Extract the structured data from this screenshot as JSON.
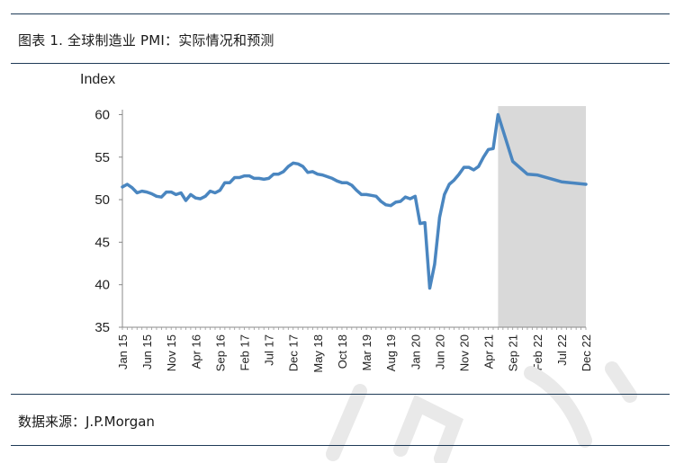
{
  "header": {
    "title": "图表 1. 全球制造业 PMI：实际情况和预测"
  },
  "footer": {
    "source": "数据来源：J.P.Morgan"
  },
  "chart_data": {
    "type": "line",
    "title": "",
    "xlabel": "",
    "ylabel": "Index",
    "ylim": [
      35,
      61
    ],
    "yticks": [
      35,
      40,
      45,
      50,
      55,
      60
    ],
    "xtick_labels": [
      "Jan 15",
      "Jun 15",
      "Nov 15",
      "Apr 16",
      "Sep 16",
      "Feb 17",
      "Jul 17",
      "Dec 17",
      "May 18",
      "Oct 18",
      "Mar 19",
      "Aug 19",
      "Jan 20",
      "Jun 20",
      "Nov 20",
      "Apr 21",
      "Sep 21",
      "Feb 22",
      "Jul 22",
      "Dec 22"
    ],
    "forecast_region": {
      "from": "Jun 21",
      "to": "Dec 22",
      "color": "#d9d9d9"
    },
    "grid": false,
    "series": [
      {
        "color": "#4a86c0",
        "x": [
          "Jan 15",
          "Feb 15",
          "Mar 15",
          "Apr 15",
          "May 15",
          "Jun 15",
          "Jul 15",
          "Aug 15",
          "Sep 15",
          "Oct 15",
          "Nov 15",
          "Dec 15",
          "Jan 16",
          "Feb 16",
          "Mar 16",
          "Apr 16",
          "May 16",
          "Jun 16",
          "Jul 16",
          "Aug 16",
          "Sep 16",
          "Oct 16",
          "Nov 16",
          "Dec 16",
          "Jan 17",
          "Feb 17",
          "Mar 17",
          "Apr 17",
          "May 17",
          "Jun 17",
          "Jul 17",
          "Aug 17",
          "Sep 17",
          "Oct 17",
          "Nov 17",
          "Dec 17",
          "Jan 18",
          "Feb 18",
          "Mar 18",
          "Apr 18",
          "May 18",
          "Jun 18",
          "Jul 18",
          "Aug 18",
          "Sep 18",
          "Oct 18",
          "Nov 18",
          "Dec 18",
          "Jan 19",
          "Feb 19",
          "Mar 19",
          "Apr 19",
          "May 19",
          "Jun 19",
          "Jul 19",
          "Aug 19",
          "Sep 19",
          "Oct 19",
          "Nov 19",
          "Dec 19",
          "Jan 20",
          "Feb 20",
          "Mar 20",
          "Apr 20",
          "May 20",
          "Jun 20",
          "Jul 20",
          "Aug 20",
          "Sep 20",
          "Oct 20",
          "Nov 20",
          "Dec 20",
          "Jan 21",
          "Feb 21",
          "Mar 21",
          "Apr 21",
          "May 21",
          "Jun 21",
          "Sep 21",
          "Dec 21",
          "Feb 22",
          "Jul 22",
          "Dec 22"
        ],
        "values": [
          51.5,
          51.8,
          51.4,
          50.8,
          51.0,
          50.9,
          50.7,
          50.4,
          50.3,
          50.9,
          50.9,
          50.6,
          50.8,
          49.9,
          50.6,
          50.2,
          50.1,
          50.4,
          51.0,
          50.8,
          51.1,
          52.0,
          52.0,
          52.6,
          52.6,
          52.8,
          52.8,
          52.5,
          52.5,
          52.4,
          52.5,
          53.0,
          53.0,
          53.3,
          53.9,
          54.3,
          54.2,
          53.9,
          53.2,
          53.3,
          53.0,
          52.9,
          52.7,
          52.5,
          52.2,
          52.0,
          52.0,
          51.7,
          51.1,
          50.6,
          50.6,
          50.5,
          50.4,
          49.8,
          49.4,
          49.3,
          49.7,
          49.8,
          50.3,
          50.1,
          50.4,
          47.2,
          47.3,
          39.6,
          42.4,
          47.9,
          50.6,
          51.8,
          52.3,
          53.0,
          53.8,
          53.8,
          53.5,
          53.9,
          55.0,
          55.9,
          56.0,
          60.0,
          54.5,
          53.0,
          52.9,
          52.1,
          51.8
        ]
      }
    ]
  }
}
